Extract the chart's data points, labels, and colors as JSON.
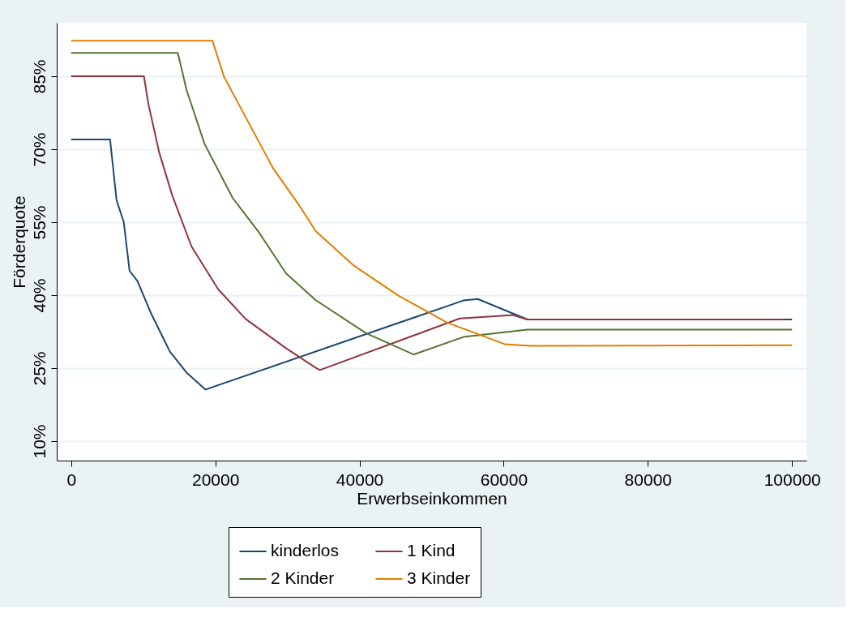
{
  "chart_data": {
    "type": "line",
    "xlabel": "Erwerbseinkommen",
    "ylabel": "Förderquote",
    "xlim": [
      -2000,
      102000
    ],
    "xticks": [
      0,
      20000,
      40000,
      60000,
      80000,
      100000
    ],
    "ylim": [
      6,
      96
    ],
    "yticks": [
      {
        "value": 10,
        "label": "10%"
      },
      {
        "value": 25,
        "label": "25%"
      },
      {
        "value": 40,
        "label": "40%"
      },
      {
        "value": 55,
        "label": "55%"
      },
      {
        "value": 70,
        "label": "70%"
      },
      {
        "value": 85,
        "label": "85%"
      }
    ],
    "grid": "y",
    "legend": "bottom",
    "line_style": "solid",
    "marker": "none",
    "series": [
      {
        "name": "kinderlos",
        "color": "#1a476f",
        "x": [
          0,
          5400,
          6300,
          7300,
          8100,
          9200,
          11100,
          13700,
          16000,
          18650,
          54400,
          56400,
          63300,
          100000
        ],
        "values": [
          72,
          72,
          59.5,
          55,
          45,
          42.9,
          36.2,
          28.4,
          24.1,
          20.6,
          38.9,
          39.2,
          35,
          35
        ]
      },
      {
        "name": "1 Kind",
        "color": "#90353b",
        "x": [
          0,
          10100,
          10700,
          12200,
          14000,
          16700,
          20400,
          24200,
          29800,
          33900,
          34500,
          53900,
          61300,
          63300,
          99000
        ],
        "values": [
          85,
          85,
          79.4,
          69.4,
          60.6,
          50,
          41.2,
          35.1,
          29.1,
          25.1,
          24.6,
          35.2,
          35.9,
          35,
          35
        ]
      },
      {
        "name": "2 Kinder",
        "color": "#55752f",
        "x": [
          0,
          14800,
          16000,
          18500,
          22400,
          26100,
          29800,
          33900,
          40900,
          47500,
          54400,
          63300,
          100000
        ],
        "values": [
          89.8,
          89.8,
          82.2,
          71.1,
          60,
          52.8,
          44.5,
          39,
          32.2,
          27.8,
          31.4,
          32.9,
          32.9
        ]
      },
      {
        "name": "3 Kinder",
        "color": "#e37e00",
        "x": [
          0,
          19600,
          21200,
          24200,
          28000,
          31700,
          33900,
          39100,
          45400,
          52100,
          60200,
          63800,
          100000
        ],
        "values": [
          92.3,
          92.3,
          84.9,
          76.6,
          66.1,
          58.3,
          53.2,
          46.2,
          39.9,
          34.4,
          29.9,
          29.6,
          29.7
        ]
      }
    ]
  }
}
